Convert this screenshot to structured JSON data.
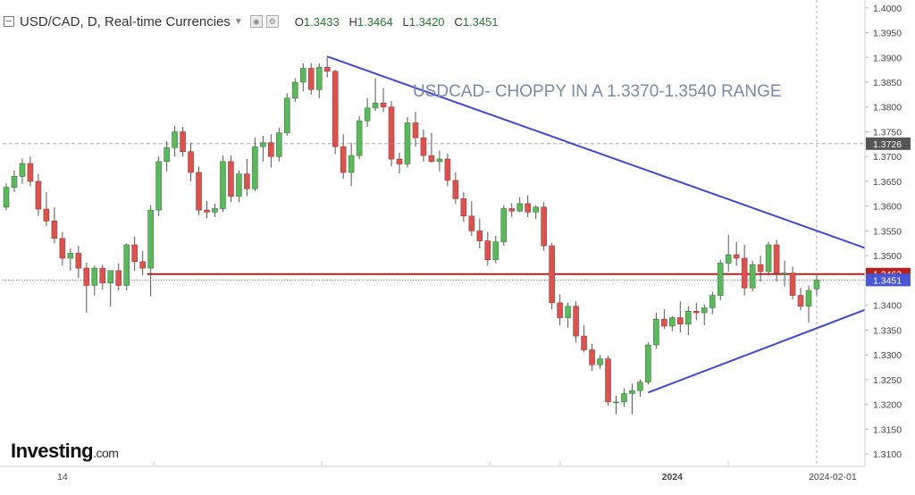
{
  "header": {
    "symbol": "USD/CAD, D, Real-time Currencies",
    "open_label": "O",
    "open": "1.3433",
    "high_label": "H",
    "high": "1.3464",
    "low_label": "L",
    "low": "1.3420",
    "close_label": "C",
    "close": "1.3451"
  },
  "logo": {
    "brand": "Investing",
    "suffix": ".com"
  },
  "chart_data": {
    "type": "candlestick",
    "title": "USDCAD- CHOPPY IN A 1.3370-1.3540 RANGE",
    "ylim": [
      1.3075,
      1.4005
    ],
    "y_ticks": [
      "1.3100",
      "1.3150",
      "1.3200",
      "1.3250",
      "1.3300",
      "1.3350",
      "1.3400",
      "1.3450",
      "1.3500",
      "1.3550",
      "1.3600",
      "1.3650",
      "1.3700",
      "1.3750",
      "1.3800",
      "1.3850",
      "1.3900",
      "1.3950",
      "1.4000"
    ],
    "x_labels": [
      {
        "index": 7,
        "label": "14"
      },
      {
        "index": 83,
        "label": "2024"
      },
      {
        "index": 103,
        "label": "2024-02-01"
      }
    ],
    "price_labels": [
      {
        "value": 1.3726,
        "text": "1.3726",
        "color": "#555555"
      },
      {
        "value": 1.3463,
        "text": "1.3463",
        "color": "#b22222"
      },
      {
        "value": 1.3451,
        "text": "1.3451",
        "color": "#4a56d6"
      }
    ],
    "horizontal_lines": [
      {
        "value": 1.3726,
        "color": "#aaaaaa",
        "dash": "4,3",
        "from_index": 0
      },
      {
        "value": 1.3463,
        "color": "#b22222",
        "dash": "",
        "from_index": 18
      },
      {
        "value": 1.3451,
        "color": "#6a74e0",
        "dash": "1,2",
        "from_index": 0
      }
    ],
    "trendlines": [
      {
        "from": [
          40,
          1.3902
        ],
        "to": [
          108,
          1.351
        ],
        "color": "#3f49d6"
      },
      {
        "from": [
          80,
          1.3224
        ],
        "to": [
          108,
          1.3397
        ],
        "color": "#3f49d6"
      }
    ],
    "candles": [
      [
        1.3598,
        1.3646,
        1.3592,
        1.3638
      ],
      [
        1.3638,
        1.3672,
        1.3628,
        1.366
      ],
      [
        1.366,
        1.3696,
        1.3645,
        1.3686
      ],
      [
        1.3686,
        1.37,
        1.364,
        1.365
      ],
      [
        1.365,
        1.3665,
        1.358,
        1.3594
      ],
      [
        1.3594,
        1.3628,
        1.356,
        1.357
      ],
      [
        1.357,
        1.3598,
        1.3525,
        1.3535
      ],
      [
        1.3535,
        1.3548,
        1.348,
        1.3495
      ],
      [
        1.3495,
        1.3515,
        1.347,
        1.3505
      ],
      [
        1.3505,
        1.352,
        1.3455,
        1.3475
      ],
      [
        1.3475,
        1.3486,
        1.3385,
        1.344
      ],
      [
        1.344,
        1.348,
        1.342,
        1.3475
      ],
      [
        1.3475,
        1.3482,
        1.3432,
        1.3445
      ],
      [
        1.3445,
        1.347,
        1.3398,
        1.347
      ],
      [
        1.347,
        1.3485,
        1.343,
        1.344
      ],
      [
        1.344,
        1.3525,
        1.343,
        1.3522
      ],
      [
        1.3522,
        1.3538,
        1.347,
        1.3488
      ],
      [
        1.3488,
        1.351,
        1.346,
        1.3475
      ],
      [
        1.3475,
        1.3602,
        1.3418,
        1.3592
      ],
      [
        1.3592,
        1.37,
        1.358,
        1.369
      ],
      [
        1.369,
        1.3731,
        1.367,
        1.3718
      ],
      [
        1.3718,
        1.3762,
        1.37,
        1.375
      ],
      [
        1.375,
        1.376,
        1.37,
        1.371
      ],
      [
        1.371,
        1.3728,
        1.365,
        1.3668
      ],
      [
        1.3668,
        1.368,
        1.3582,
        1.3592
      ],
      [
        1.3592,
        1.361,
        1.3576,
        1.3588
      ],
      [
        1.3588,
        1.3605,
        1.3578,
        1.3595
      ],
      [
        1.3595,
        1.3702,
        1.3588,
        1.369
      ],
      [
        1.369,
        1.3702,
        1.3608,
        1.362
      ],
      [
        1.362,
        1.3672,
        1.3608,
        1.3665
      ],
      [
        1.3665,
        1.3695,
        1.362,
        1.3635
      ],
      [
        1.3635,
        1.3738,
        1.363,
        1.372
      ],
      [
        1.372,
        1.3742,
        1.369,
        1.3728
      ],
      [
        1.3728,
        1.3745,
        1.3678,
        1.37
      ],
      [
        1.37,
        1.3758,
        1.369,
        1.3748
      ],
      [
        1.3748,
        1.3828,
        1.3742,
        1.3818
      ],
      [
        1.3818,
        1.3858,
        1.381,
        1.385
      ],
      [
        1.385,
        1.3888,
        1.3832,
        1.3878
      ],
      [
        1.3878,
        1.3888,
        1.3825,
        1.3835
      ],
      [
        1.3835,
        1.3888,
        1.3818,
        1.388
      ],
      [
        1.388,
        1.39,
        1.386,
        1.3872
      ],
      [
        1.3872,
        1.3875,
        1.3705,
        1.372
      ],
      [
        1.372,
        1.3745,
        1.3655,
        1.3668
      ],
      [
        1.3668,
        1.3728,
        1.364,
        1.3702
      ],
      [
        1.3702,
        1.3782,
        1.3695,
        1.3772
      ],
      [
        1.3772,
        1.3818,
        1.376,
        1.3798
      ],
      [
        1.3798,
        1.3858,
        1.3792,
        1.3808
      ],
      [
        1.3808,
        1.3838,
        1.379,
        1.38
      ],
      [
        1.38,
        1.3812,
        1.368,
        1.3695
      ],
      [
        1.3695,
        1.3708,
        1.3666,
        1.3685
      ],
      [
        1.3685,
        1.378,
        1.3678,
        1.3768
      ],
      [
        1.3768,
        1.379,
        1.372,
        1.3738
      ],
      [
        1.3738,
        1.3755,
        1.369,
        1.3702
      ],
      [
        1.3702,
        1.3748,
        1.3688,
        1.369
      ],
      [
        1.369,
        1.3712,
        1.367,
        1.3695
      ],
      [
        1.3695,
        1.3706,
        1.364,
        1.3652
      ],
      [
        1.3652,
        1.3668,
        1.3605,
        1.3615
      ],
      [
        1.3615,
        1.3628,
        1.3568,
        1.358
      ],
      [
        1.358,
        1.361,
        1.354,
        1.355
      ],
      [
        1.355,
        1.3575,
        1.3515,
        1.353
      ],
      [
        1.353,
        1.3548,
        1.348,
        1.3492
      ],
      [
        1.3492,
        1.354,
        1.3485,
        1.3528
      ],
      [
        1.3528,
        1.3602,
        1.352,
        1.3595
      ],
      [
        1.3595,
        1.3606,
        1.3578,
        1.359
      ],
      [
        1.359,
        1.3618,
        1.3588,
        1.3605
      ],
      [
        1.3605,
        1.3622,
        1.3578,
        1.3588
      ],
      [
        1.3588,
        1.3602,
        1.3574,
        1.3598
      ],
      [
        1.3598,
        1.3608,
        1.351,
        1.352
      ],
      [
        1.352,
        1.3526,
        1.3392,
        1.3405
      ],
      [
        1.3405,
        1.3422,
        1.336,
        1.3375
      ],
      [
        1.3375,
        1.3405,
        1.3355,
        1.3398
      ],
      [
        1.3398,
        1.3408,
        1.3325,
        1.3338
      ],
      [
        1.3338,
        1.336,
        1.3305,
        1.331
      ],
      [
        1.331,
        1.3322,
        1.3268,
        1.328
      ],
      [
        1.328,
        1.33,
        1.3272,
        1.3292
      ],
      [
        1.3292,
        1.3298,
        1.3198,
        1.3205
      ],
      [
        1.3205,
        1.3218,
        1.318,
        1.3205
      ],
      [
        1.3205,
        1.3232,
        1.3195,
        1.3222
      ],
      [
        1.3222,
        1.3242,
        1.318,
        1.3228
      ],
      [
        1.3228,
        1.325,
        1.3215,
        1.3245
      ],
      [
        1.3245,
        1.3325,
        1.324,
        1.332
      ],
      [
        1.332,
        1.3385,
        1.3312,
        1.3372
      ],
      [
        1.3372,
        1.3392,
        1.3352,
        1.3358
      ],
      [
        1.3358,
        1.3378,
        1.3348,
        1.3375
      ],
      [
        1.3375,
        1.3408,
        1.3345,
        1.3362
      ],
      [
        1.3362,
        1.3398,
        1.334,
        1.3388
      ],
      [
        1.3388,
        1.3405,
        1.337,
        1.3385
      ],
      [
        1.3385,
        1.3402,
        1.336,
        1.3395
      ],
      [
        1.3395,
        1.3428,
        1.3382,
        1.342
      ],
      [
        1.342,
        1.3492,
        1.341,
        1.3485
      ],
      [
        1.3485,
        1.3542,
        1.3468,
        1.3502
      ],
      [
        1.3502,
        1.3528,
        1.348,
        1.3495
      ],
      [
        1.3495,
        1.3522,
        1.342,
        1.3435
      ],
      [
        1.3435,
        1.349,
        1.3428,
        1.3482
      ],
      [
        1.3482,
        1.35,
        1.3448,
        1.3468
      ],
      [
        1.3468,
        1.3528,
        1.346,
        1.3522
      ],
      [
        1.3522,
        1.3532,
        1.3448,
        1.3465
      ],
      [
        1.3465,
        1.349,
        1.3438,
        1.3465
      ],
      [
        1.3465,
        1.3478,
        1.3412,
        1.342
      ],
      [
        1.342,
        1.3435,
        1.339,
        1.3398
      ],
      [
        1.3398,
        1.344,
        1.3365,
        1.343
      ],
      [
        1.3433,
        1.3464,
        1.342,
        1.3451
      ]
    ]
  }
}
